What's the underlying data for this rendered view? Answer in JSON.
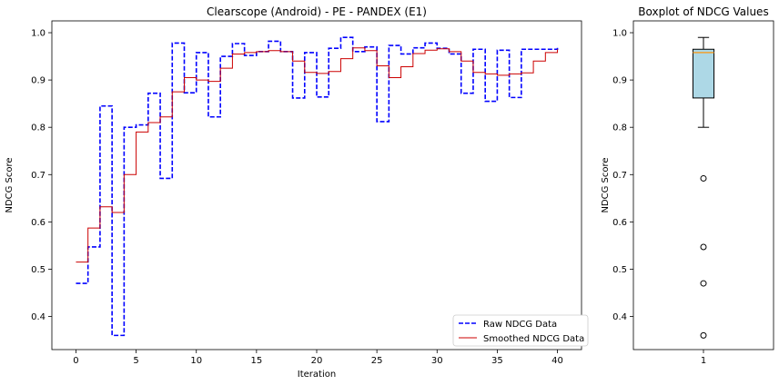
{
  "chart_data": [
    {
      "type": "line",
      "title": "Clearscope (Android) - PE - PANDEX (E1)",
      "xlabel": "Iteration",
      "ylabel": "NDCG Score",
      "xlim": [
        -2,
        42
      ],
      "ylim": [
        0.33,
        1.025
      ],
      "xticks": [
        0,
        5,
        10,
        15,
        20,
        25,
        30,
        35,
        40
      ],
      "yticks": [
        0.4,
        0.5,
        0.6,
        0.7,
        0.8,
        0.9,
        1.0
      ],
      "ytick_labels": [
        "0.4",
        "0.5",
        "0.6",
        "0.7",
        "0.8",
        "0.9",
        "1.0"
      ],
      "step": "post",
      "grid": false,
      "legend_position": "lower-right",
      "x": [
        0,
        1,
        2,
        3,
        4,
        5,
        6,
        7,
        8,
        9,
        10,
        11,
        12,
        13,
        14,
        15,
        16,
        17,
        18,
        19,
        20,
        21,
        22,
        23,
        24,
        25,
        26,
        27,
        28,
        29,
        30,
        31,
        32,
        33,
        34,
        35,
        36,
        37,
        38,
        39,
        40
      ],
      "series": [
        {
          "name": "Raw NDCG Data",
          "color": "#0000ff",
          "style": "dashed",
          "values": [
            0.47,
            0.547,
            0.845,
            0.36,
            0.8,
            0.805,
            0.872,
            0.692,
            0.978,
            0.873,
            0.958,
            0.822,
            0.95,
            0.977,
            0.952,
            0.96,
            0.982,
            0.96,
            0.862,
            0.958,
            0.864,
            0.967,
            0.99,
            0.96,
            0.97,
            0.812,
            0.973,
            0.955,
            0.968,
            0.978,
            0.967,
            0.955,
            0.872,
            0.965,
            0.855,
            0.963,
            0.863,
            0.965,
            0.965,
            0.965,
            0.97
          ]
        },
        {
          "name": "Smoothed NDCG Data",
          "color": "#cc0000",
          "style": "solid",
          "values": [
            0.515,
            0.587,
            0.632,
            0.62,
            0.7,
            0.79,
            0.81,
            0.822,
            0.875,
            0.905,
            0.9,
            0.897,
            0.925,
            0.955,
            0.958,
            0.96,
            0.962,
            0.96,
            0.94,
            0.916,
            0.914,
            0.918,
            0.945,
            0.968,
            0.962,
            0.93,
            0.905,
            0.928,
            0.956,
            0.963,
            0.966,
            0.96,
            0.94,
            0.916,
            0.913,
            0.91,
            0.913,
            0.915,
            0.94,
            0.958,
            0.965
          ]
        }
      ]
    },
    {
      "type": "box",
      "title": "Boxplot of NDCG Values",
      "ylabel": "NDCG Score",
      "categories": [
        "1"
      ],
      "ylim": [
        0.33,
        1.025
      ],
      "yticks": [
        0.4,
        0.5,
        0.6,
        0.7,
        0.8,
        0.9,
        1.0
      ],
      "ytick_labels": [
        "0.4",
        "0.5",
        "0.6",
        "0.7",
        "0.8",
        "0.9",
        "1.0"
      ],
      "box_color": "#add8e6",
      "median_color": "#f0a030",
      "stats": {
        "whisker_low": 0.8,
        "q1": 0.862,
        "median": 0.958,
        "q3": 0.965,
        "whisker_high": 0.99,
        "outliers": [
          0.692,
          0.547,
          0.47,
          0.36
        ]
      }
    }
  ]
}
